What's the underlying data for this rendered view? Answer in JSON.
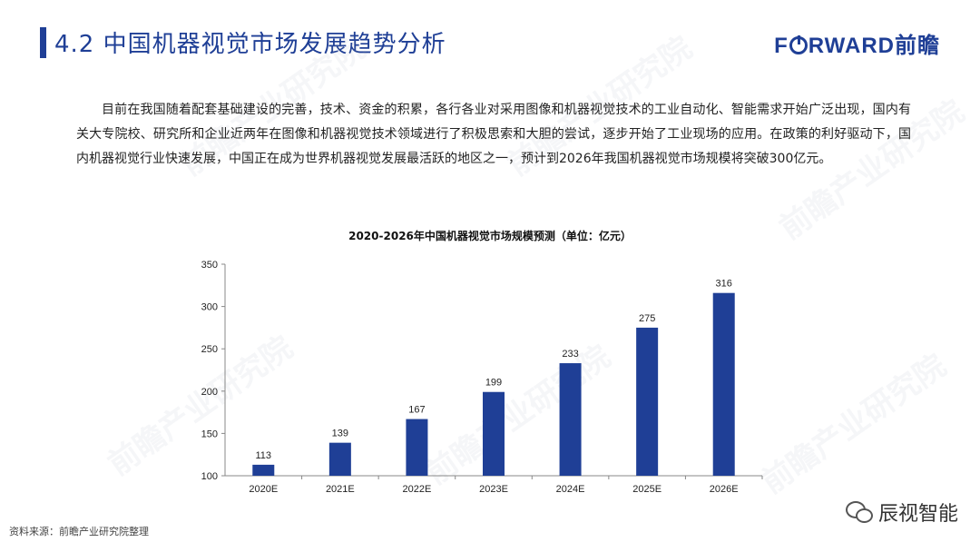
{
  "header": {
    "title": "4.2 中国机器视觉市场发展趋势分析",
    "logo_prefix": "F",
    "logo_suffix": "RWARD前瞻"
  },
  "body_text": "目前在我国随着配套基础建设的完善，技术、资金的积累，各行各业对采用图像和机器视觉技术的工业自动化、智能需求开始广泛出现，国内有关大专院校、研究所和企业近两年在图像和机器视觉技术领域进行了积极思索和大胆的尝试，逐步开始了工业现场的应用。在政策的利好驱动下，国内机器视觉行业快速发展，中国正在成为世界机器视觉发展最活跃的地区之一，预计到2026年我国机器视觉市场规模将突破300亿元。",
  "watermark": "前瞻产业研究院",
  "chart_data": {
    "type": "bar",
    "title": "2020-2026年中国机器视觉市场规模预测（单位：亿元）",
    "categories": [
      "2020E",
      "2021E",
      "2022E",
      "2023E",
      "2024E",
      "2025E",
      "2026E"
    ],
    "values": [
      113,
      139,
      167,
      199,
      233,
      275,
      316
    ],
    "ylim": [
      100,
      350
    ],
    "yticks": [
      100,
      150,
      200,
      250,
      300,
      350
    ],
    "bar_color": "#1f3f96",
    "grid": false,
    "legend": "none"
  },
  "footer": {
    "source": "资料来源：前瞻产业研究院整理",
    "wechat_name": "辰视智能"
  }
}
